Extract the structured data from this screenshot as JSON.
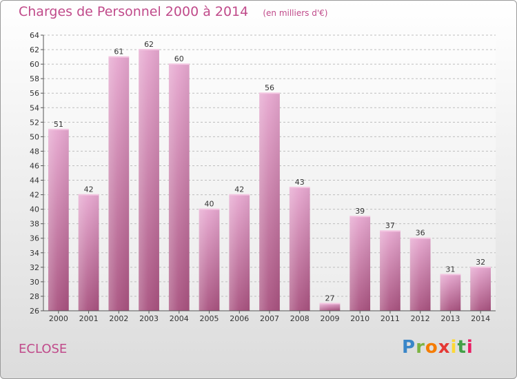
{
  "title": "Charges de Personnel 2000 à 2014",
  "unit": "(en milliers d'€)",
  "commune": "ECLOSE",
  "logo": {
    "text": "Proxiti",
    "letters": [
      "P",
      "r",
      "o",
      "x",
      "i",
      "t",
      "i"
    ],
    "colors": [
      "#3a86c8",
      "#7cb342",
      "#f57c00",
      "#e53935",
      "#fdd835",
      "#43a047",
      "#e91e63"
    ]
  },
  "colors": {
    "bar": "#d98cbf",
    "bar_dark": "#a8527f",
    "accent": "#c04a8a"
  },
  "chart_data": {
    "type": "bar",
    "categories": [
      "2000",
      "2001",
      "2002",
      "2003",
      "2004",
      "2005",
      "2006",
      "2007",
      "2008",
      "2009",
      "2010",
      "2011",
      "2012",
      "2013",
      "2014"
    ],
    "values": [
      51,
      42,
      61,
      62,
      60,
      40,
      42,
      56,
      43,
      27,
      39,
      37,
      36,
      31,
      32
    ],
    "title": "Charges de Personnel 2000 à 2014",
    "xlabel": "",
    "ylabel": "",
    "ylim": [
      26,
      64
    ],
    "yticks": [
      26,
      28,
      30,
      32,
      34,
      36,
      38,
      40,
      42,
      44,
      46,
      48,
      50,
      52,
      54,
      56,
      58,
      60,
      62,
      64
    ],
    "grid": true,
    "legend": "none"
  }
}
